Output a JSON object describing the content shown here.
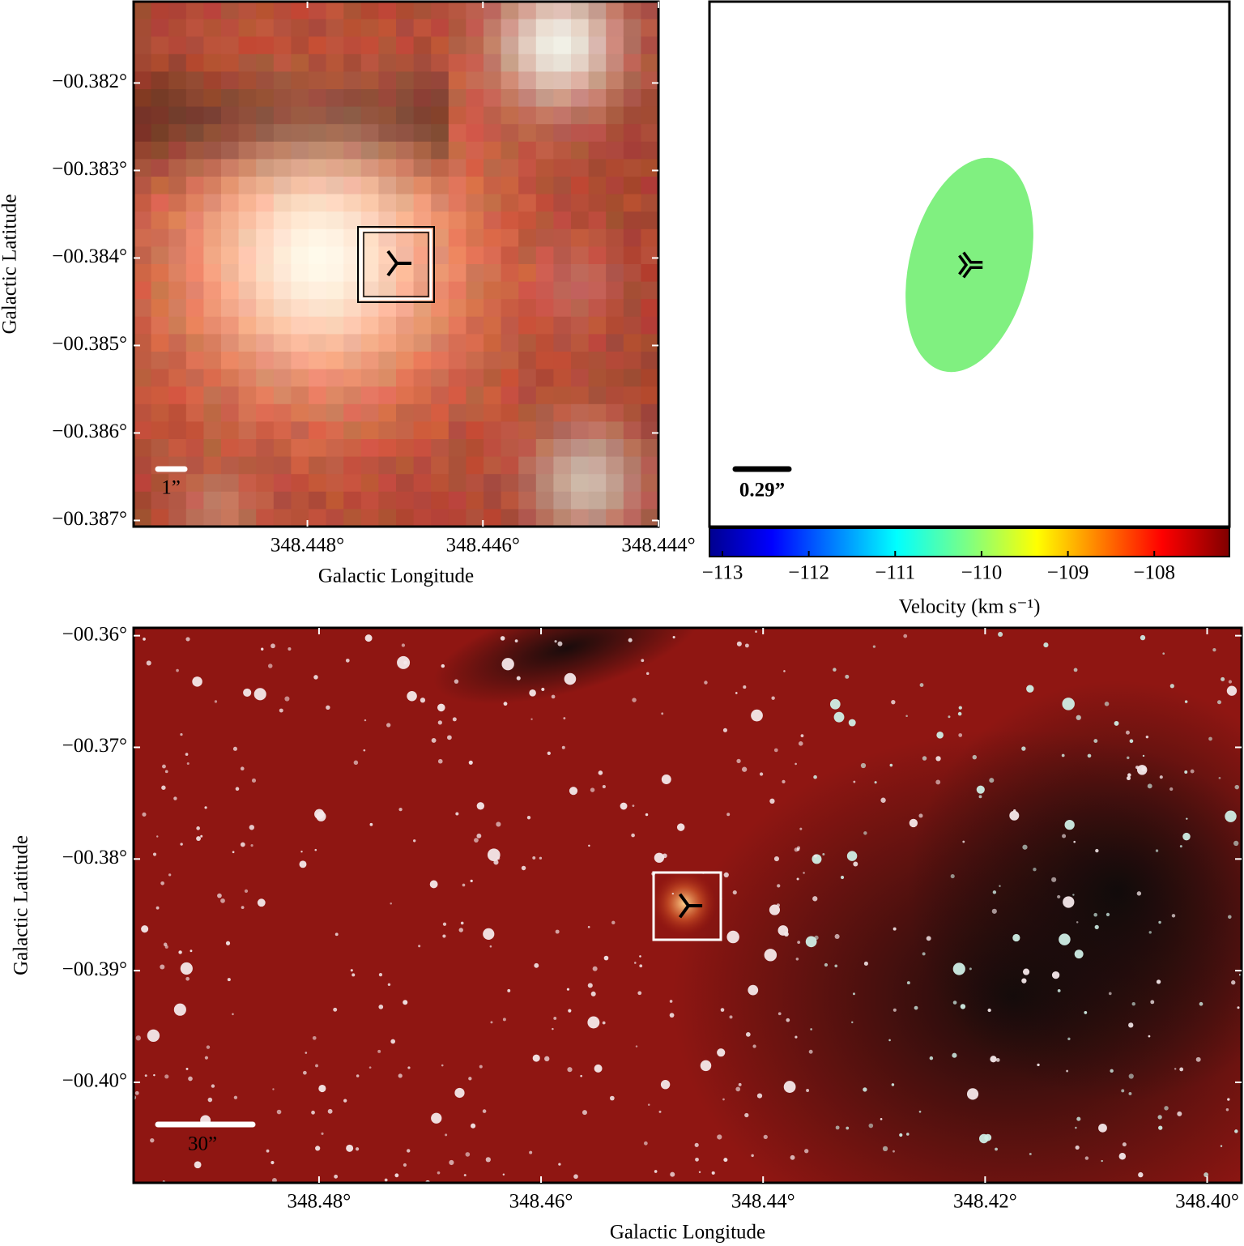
{
  "chart_data": [
    {
      "type": "image",
      "xlabel": "Galactic Longitude",
      "ylabel": "Galactic Latitude",
      "xlim": [
        348.44998,
        348.444
      ],
      "ylim": [
        -0.38707,
        -0.38107
      ],
      "xticks": [
        {
          "value": 348.448,
          "label": "348.448°"
        },
        {
          "value": 348.446,
          "label": "348.446°"
        },
        {
          "value": 348.444,
          "label": "348.444°"
        }
      ],
      "yticks": [
        {
          "value": -0.382,
          "label": "−00.382°"
        },
        {
          "value": -0.383,
          "label": "−00.383°"
        },
        {
          "value": -0.384,
          "label": "−00.384°"
        },
        {
          "value": -0.385,
          "label": "−00.385°"
        },
        {
          "value": -0.386,
          "label": "−00.386°"
        },
        {
          "value": -0.387,
          "label": "−00.387°"
        }
      ],
      "scalebar_label": "1”"
    },
    {
      "type": "velocity-map",
      "color": "#80f080",
      "scalebar_label": "0.29”",
      "clabel": "Velocity (km s⁻¹)",
      "clim": [
        -113.15,
        -107.13
      ],
      "cticks": [
        {
          "value": -113,
          "label": "−113"
        },
        {
          "value": -112,
          "label": "−112"
        },
        {
          "value": -111,
          "label": "−111"
        },
        {
          "value": -110,
          "label": "−110"
        },
        {
          "value": -109,
          "label": "−109"
        },
        {
          "value": -108,
          "label": "−108"
        }
      ]
    },
    {
      "type": "image",
      "xlabel": "Galactic Longitude",
      "ylabel": "Galactic Latitude",
      "xlim": [
        348.4967,
        348.3969
      ],
      "ylim": [
        -0.409,
        -0.3593
      ],
      "xticks": [
        {
          "value": 348.48,
          "label": "348.48°"
        },
        {
          "value": 348.46,
          "label": "348.46°"
        },
        {
          "value": 348.44,
          "label": "348.44°"
        },
        {
          "value": 348.42,
          "label": "348.42°"
        },
        {
          "value": 348.4,
          "label": "348.40°"
        }
      ],
      "yticks": [
        {
          "value": -0.36,
          "label": "−00.36°"
        },
        {
          "value": -0.37,
          "label": "−00.37°"
        },
        {
          "value": -0.38,
          "label": "−00.38°"
        },
        {
          "value": -0.39,
          "label": "−00.39°"
        },
        {
          "value": -0.4,
          "label": "−00.40°"
        }
      ],
      "scalebar_label": "30”"
    }
  ]
}
